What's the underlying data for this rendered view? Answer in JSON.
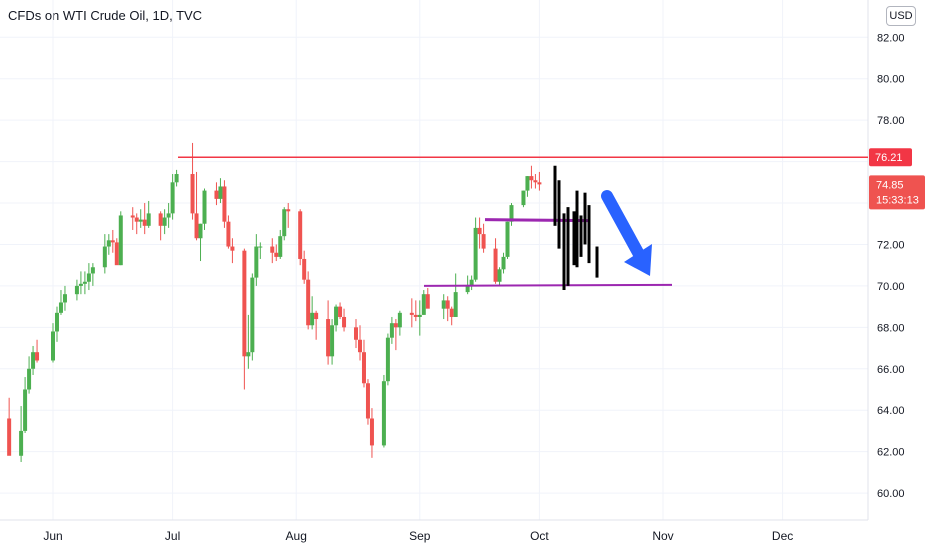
{
  "header": {
    "title": "CFDs on WTI Crude Oil, 1D, TVC",
    "currency": "USD"
  },
  "colors": {
    "up": "#26a69a",
    "down": "#ef5350",
    "up_body": "#4caf50",
    "resistance": "#f23645",
    "support": "#9c27b0",
    "projection": "#000000",
    "arrow": "#2962ff"
  },
  "chart_data": {
    "type": "candlestick",
    "title": "CFDs on WTI Crude Oil, 1D, TVC",
    "x_labels": [
      "Jun",
      "Jul",
      "Aug",
      "Sep",
      "Oct",
      "Nov",
      "Dec"
    ],
    "y_ticks": [
      "82.00",
      "80.00",
      "78.00",
      "76.00",
      "74.00",
      "72.00",
      "70.00",
      "68.00",
      "66.00",
      "64.00",
      "62.00",
      "60.00"
    ],
    "ylim": [
      58.7,
      83.8
    ],
    "price_labels": {
      "resistance": "76.21",
      "last": "74.85",
      "countdown": "15:33:13"
    },
    "levels": {
      "resistance": 76.21,
      "support_upper": 73.2,
      "support_lower": 70.0
    },
    "series": [
      {
        "name": "WTI",
        "dates": [
          "2021-05-21",
          "2021-05-24",
          "2021-05-25",
          "2021-05-26",
          "2021-05-27",
          "2021-05-28",
          "2021-06-01",
          "2021-06-02",
          "2021-06-03",
          "2021-06-04",
          "2021-06-07",
          "2021-06-08",
          "2021-06-09",
          "2021-06-10",
          "2021-06-11",
          "2021-06-14",
          "2021-06-15",
          "2021-06-16",
          "2021-06-17",
          "2021-06-18",
          "2021-06-21",
          "2021-06-22",
          "2021-06-23",
          "2021-06-24",
          "2021-06-25",
          "2021-06-28",
          "2021-06-29",
          "2021-06-30",
          "2021-07-01",
          "2021-07-02",
          "2021-07-06",
          "2021-07-07",
          "2021-07-08",
          "2021-07-09",
          "2021-07-12",
          "2021-07-13",
          "2021-07-14",
          "2021-07-15",
          "2021-07-16",
          "2021-07-19",
          "2021-07-20",
          "2021-07-21",
          "2021-07-22",
          "2021-07-23",
          "2021-07-26",
          "2021-07-27",
          "2021-07-28",
          "2021-07-29",
          "2021-07-30",
          "2021-08-02",
          "2021-08-03",
          "2021-08-04",
          "2021-08-05",
          "2021-08-06",
          "2021-08-09",
          "2021-08-10",
          "2021-08-11",
          "2021-08-12",
          "2021-08-13",
          "2021-08-16",
          "2021-08-17",
          "2021-08-18",
          "2021-08-19",
          "2021-08-20",
          "2021-08-23",
          "2021-08-24",
          "2021-08-25",
          "2021-08-26",
          "2021-08-27",
          "2021-08-30",
          "2021-08-31",
          "2021-09-01",
          "2021-09-02",
          "2021-09-03",
          "2021-09-07",
          "2021-09-08",
          "2021-09-09",
          "2021-09-10",
          "2021-09-13",
          "2021-09-14",
          "2021-09-15",
          "2021-09-16",
          "2021-09-17",
          "2021-09-20",
          "2021-09-21",
          "2021-09-22",
          "2021-09-23",
          "2021-09-24",
          "2021-09-27",
          "2021-09-28",
          "2021-09-29",
          "2021-09-30",
          "2021-10-01"
        ],
        "open": [
          63.6,
          61.8,
          63.0,
          65.0,
          66.0,
          66.8,
          66.4,
          67.8,
          68.7,
          69.2,
          69.6,
          70.0,
          70.1,
          70.2,
          70.6,
          70.9,
          71.9,
          72.2,
          72.1,
          71.0,
          73.4,
          73.3,
          73.1,
          73.2,
          72.9,
          73.5,
          72.9,
          73.3,
          73.5,
          75.0,
          75.4,
          73.5,
          72.3,
          73.0,
          74.6,
          74.2,
          74.8,
          73.1,
          71.9,
          71.7,
          66.6,
          66.8,
          70.4,
          71.9,
          71.9,
          71.6,
          71.4,
          72.4,
          73.7,
          73.6,
          71.3,
          70.3,
          68.1,
          68.7,
          68.4,
          66.6,
          68.1,
          69.0,
          68.5,
          68.0,
          67.4,
          66.8,
          65.3,
          63.6,
          62.3,
          65.4,
          67.5,
          68.2,
          68.0,
          68.7,
          68.6,
          68.5,
          68.6,
          69.6,
          68.9,
          69.3,
          68.9,
          68.5,
          69.7,
          70.0,
          70.3,
          72.8,
          72.5,
          71.8,
          70.2,
          70.8,
          71.4,
          73.1,
          73.9,
          74.6,
          75.3,
          75.1,
          75.0
        ],
        "high": [
          64.6,
          64.2,
          65.6,
          66.6,
          67.1,
          67.4,
          68.2,
          69.0,
          69.8,
          70.0,
          70.3,
          70.7,
          70.7,
          71.1,
          71.1,
          72.5,
          72.5,
          72.7,
          72.3,
          73.6,
          73.8,
          73.5,
          73.7,
          74.0,
          74.1,
          73.6,
          73.7,
          74.0,
          75.4,
          75.6,
          76.9,
          75.5,
          73.0,
          74.7,
          75.0,
          75.2,
          75.1,
          73.4,
          72.3,
          71.8,
          68.6,
          70.6,
          72.5,
          72.1,
          72.3,
          72.0,
          72.7,
          73.8,
          74.0,
          73.7,
          71.7,
          70.7,
          69.5,
          68.8,
          69.3,
          68.4,
          69.1,
          69.2,
          68.9,
          68.4,
          68.1,
          67.4,
          65.5,
          64.1,
          65.7,
          67.7,
          68.5,
          68.4,
          68.8,
          69.4,
          69.3,
          69.3,
          69.8,
          69.9,
          69.6,
          69.5,
          69.0,
          70.6,
          70.5,
          70.5,
          73.3,
          73.3,
          73.0,
          72.3,
          70.9,
          71.6,
          73.1,
          74.0,
          74.6,
          75.3,
          75.8,
          75.4,
          75.5
        ],
        "low": [
          61.9,
          61.5,
          62.9,
          64.8,
          65.7,
          66.3,
          66.3,
          67.3,
          68.6,
          68.8,
          69.3,
          69.6,
          69.6,
          69.8,
          70.0,
          70.6,
          71.5,
          71.6,
          71.2,
          71.0,
          72.7,
          72.5,
          72.8,
          72.5,
          72.8,
          72.2,
          72.5,
          72.8,
          73.2,
          74.8,
          73.2,
          72.2,
          71.2,
          72.7,
          73.9,
          74.0,
          72.8,
          71.8,
          71.1,
          65.0,
          66.0,
          66.4,
          70.0,
          71.3,
          71.1,
          71.2,
          71.3,
          72.2,
          72.8,
          71.0,
          70.1,
          67.9,
          67.9,
          67.4,
          66.2,
          66.2,
          67.8,
          68.4,
          67.8,
          67.0,
          66.4,
          65.1,
          63.3,
          61.7,
          62.2,
          65.2,
          67.2,
          66.9,
          67.6,
          68.0,
          68.3,
          67.6,
          68.6,
          69.0,
          68.4,
          68.3,
          68.1,
          68.5,
          69.6,
          69.8,
          70.2,
          71.8,
          71.6,
          70.1,
          70.0,
          70.6,
          71.3,
          72.9,
          73.8,
          74.3,
          74.7,
          74.7,
          74.6
        ],
        "close": [
          61.8,
          63.0,
          65.0,
          66.0,
          66.8,
          66.4,
          67.8,
          68.7,
          69.2,
          69.6,
          70.0,
          70.1,
          70.2,
          70.6,
          70.9,
          71.9,
          72.2,
          72.1,
          71.0,
          73.4,
          73.3,
          73.1,
          73.2,
          72.9,
          73.5,
          72.9,
          73.3,
          73.5,
          75.0,
          75.4,
          73.5,
          72.3,
          73.0,
          74.6,
          74.2,
          74.8,
          73.1,
          71.9,
          71.7,
          66.6,
          66.8,
          70.4,
          71.9,
          71.9,
          71.6,
          71.4,
          72.4,
          73.7,
          73.6,
          71.3,
          70.3,
          68.1,
          68.7,
          68.4,
          66.6,
          68.1,
          69.0,
          68.5,
          68.0,
          67.4,
          66.8,
          65.3,
          63.6,
          62.3,
          65.4,
          67.5,
          68.2,
          68.0,
          68.7,
          68.6,
          68.5,
          68.6,
          69.6,
          68.9,
          69.3,
          68.9,
          68.5,
          69.7,
          70.0,
          70.3,
          72.8,
          72.5,
          71.8,
          70.2,
          70.8,
          71.4,
          73.1,
          73.9,
          74.6,
          75.3,
          75.1,
          75.0,
          74.9
        ]
      }
    ],
    "grid": true,
    "legend": "none"
  }
}
